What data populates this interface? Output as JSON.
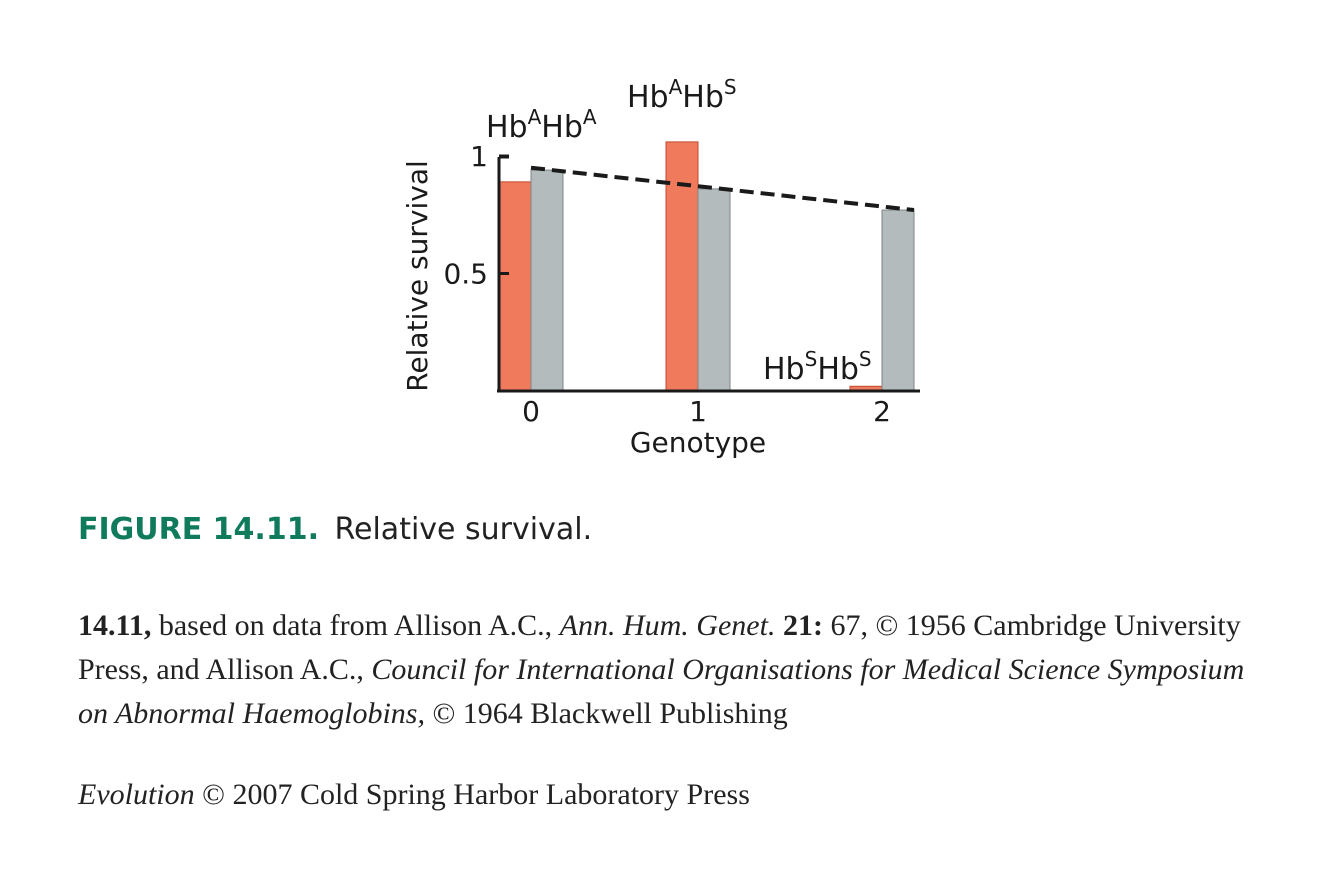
{
  "chart_data": {
    "type": "bar",
    "categories": [
      "0",
      "1",
      "2"
    ],
    "series": [
      {
        "values": [
          0.89,
          1.06,
          0.02
        ],
        "color": "#f07a5c"
      },
      {
        "values": [
          0.94,
          0.86,
          0.77
        ],
        "color": "#b4bbbd"
      }
    ],
    "trend_line": {
      "x": [
        "0",
        "2"
      ],
      "y": [
        0.95,
        0.77
      ],
      "style": "dashed"
    },
    "xlabel": "Genotype",
    "ylabel": "Relative survival",
    "yticks": [
      "0.5",
      "1"
    ],
    "ylim": [
      0,
      1.1
    ],
    "annotations": [
      {
        "category": "0",
        "base": "Hb",
        "sup1": "A",
        "mid": "Hb",
        "sup2": "A"
      },
      {
        "category": "1",
        "base": "Hb",
        "sup1": "A",
        "mid": "Hb",
        "sup2": "S"
      },
      {
        "category": "2",
        "base": "Hb",
        "sup1": "S",
        "mid": "Hb",
        "sup2": "S"
      }
    ]
  },
  "caption": {
    "label": "FIGURE 14.11.",
    "text": "Relative survival."
  },
  "credits": {
    "c1": "14.11,",
    "c2": " based on data from Allison A.C., ",
    "c3": "Ann. Hum. Genet.",
    "c4": " ",
    "c5": "21:",
    "c6": " 67, © 1956 Cambridge University Press, and Allison A.C., ",
    "c7": "Council for International Organisations for Medical Science Symposium on Abnormal Haemoglobins,",
    "c8": " © 1964 Blackwell Publishing"
  },
  "copyright": {
    "title": "Evolution",
    "rest": " © 2007 Cold Spring Harbor Laboratory Press"
  }
}
